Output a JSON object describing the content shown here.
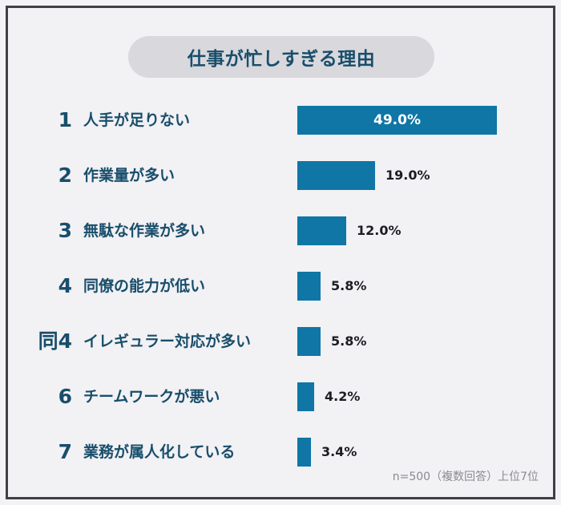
{
  "title": "仕事が忙しすぎる理由",
  "note": "n=500（複数回答）上位7位",
  "colors": {
    "bar": "#0f76a6",
    "text": "#184e6b",
    "pill": "#d9d8dc",
    "frame": "#3f3f44"
  },
  "rows": [
    {
      "rank": "1",
      "label": "人手が足りない",
      "value": 49.0,
      "value_label": "49.0%"
    },
    {
      "rank": "2",
      "label": "作業量が多い",
      "value": 19.0,
      "value_label": "19.0%"
    },
    {
      "rank": "3",
      "label": "無駄な作業が多い",
      "value": 12.0,
      "value_label": "12.0%"
    },
    {
      "rank": "4",
      "label": "同僚の能力が低い",
      "value": 5.8,
      "value_label": "5.8%"
    },
    {
      "rank": "同4",
      "label": "イレギュラー対応が多い",
      "value": 5.8,
      "value_label": "5.8%"
    },
    {
      "rank": "6",
      "label": "チームワークが悪い",
      "value": 4.2,
      "value_label": "4.2%"
    },
    {
      "rank": "7",
      "label": "業務が属人化している",
      "value": 3.4,
      "value_label": "3.4%"
    }
  ],
  "chart_data": {
    "type": "bar",
    "orientation": "horizontal",
    "title": "仕事が忙しすぎる理由",
    "categories": [
      "人手が足りない",
      "作業量が多い",
      "無駄な作業が多い",
      "同僚の能力が低い",
      "イレギュラー対応が多い",
      "チームワークが悪い",
      "業務が属人化している"
    ],
    "ranks": [
      "1",
      "2",
      "3",
      "4",
      "同4",
      "6",
      "7"
    ],
    "values": [
      49.0,
      19.0,
      12.0,
      5.8,
      5.8,
      4.2,
      3.4
    ],
    "unit": "%",
    "xlabel": "",
    "ylabel": "",
    "grid": false,
    "legend": null,
    "annotation": "n=500（複数回答）上位7位"
  }
}
